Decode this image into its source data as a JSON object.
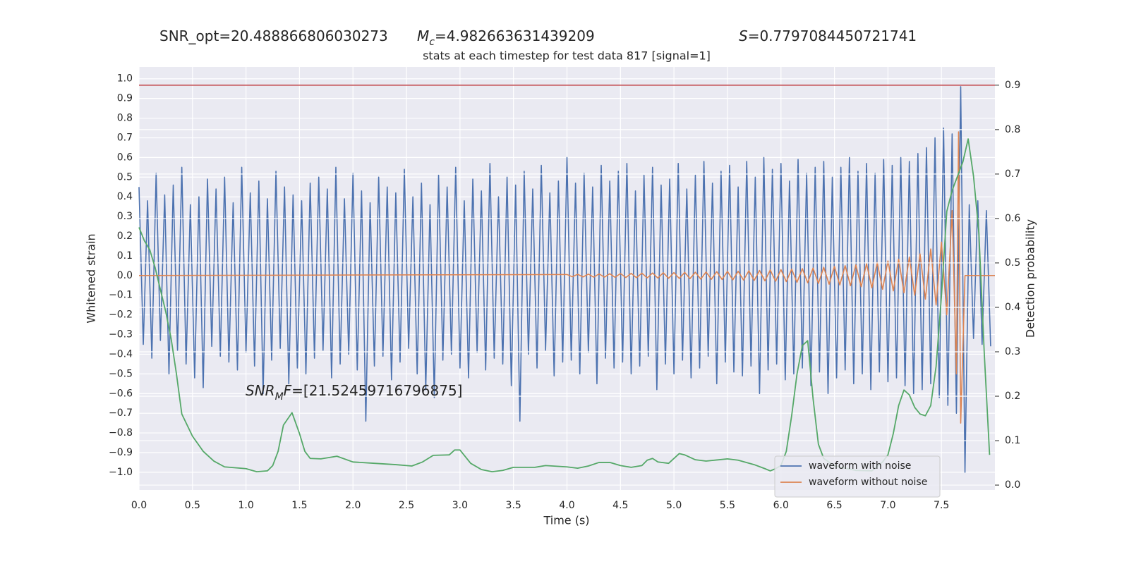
{
  "chart_data": {
    "type": "line",
    "header": [
      {
        "parts": [
          {
            "text": "SNR_opt=20.488866806030273"
          }
        ]
      },
      {
        "parts": [
          {
            "text": "M",
            "italic": true
          },
          {
            "text": "c",
            "italic": true,
            "sub": true
          },
          {
            "text": "=4.982663631439209"
          }
        ]
      },
      {
        "parts": [
          {
            "text": "S",
            "italic": true
          },
          {
            "text": "=0.7797084450721741"
          }
        ]
      }
    ],
    "title": "stats at each timestep for test data 817 [signal=1]",
    "annotations": [
      {
        "parts": [
          {
            "text": "SNR",
            "italic": true
          },
          {
            "text": "M",
            "italic": true,
            "sub": true
          },
          {
            "text": "F",
            "italic": true
          },
          {
            "text": "=[21.52459716796875]"
          }
        ]
      }
    ],
    "xlabel": "Time (s)",
    "ylabel": "Whitened strain",
    "y2label": "Detection probability",
    "xlim": [
      0,
      8
    ],
    "ylim": [
      -1.09,
      1.06
    ],
    "y2lim": [
      -0.011,
      0.941
    ],
    "xticks": [
      {
        "value": 0,
        "label": "0.0"
      },
      0.5,
      {
        "value": 1,
        "label": "1.0"
      },
      1.5,
      {
        "value": 2,
        "label": "2.0"
      },
      2.5,
      {
        "value": 3,
        "label": "3.0"
      },
      3.5,
      {
        "value": 4,
        "label": "4.0"
      },
      4.5,
      {
        "value": 5,
        "label": "5.0"
      },
      5.5,
      {
        "value": 6,
        "label": "6.0"
      },
      6.5,
      {
        "value": 7,
        "label": "7.0"
      },
      7.5
    ],
    "yticks": [
      {
        "value": 1,
        "label": "1.0"
      },
      0.9,
      0.8,
      0.7,
      0.6,
      0.5,
      0.4,
      0.3,
      0.2,
      0.1,
      {
        "value": 0,
        "label": "0.0"
      },
      {
        "value": -0.1,
        "label": "−0.1"
      },
      {
        "value": -0.2,
        "label": "−0.2"
      },
      {
        "value": -0.3,
        "label": "−0.3"
      },
      {
        "value": -0.4,
        "label": "−0.4"
      },
      {
        "value": -0.5,
        "label": "−0.5"
      },
      {
        "value": -0.6,
        "label": "−0.6"
      },
      {
        "value": -0.7,
        "label": "−0.7"
      },
      {
        "value": -0.8,
        "label": "−0.8"
      },
      {
        "value": -0.9,
        "label": "−0.9"
      },
      {
        "value": -1,
        "label": "−1.0"
      }
    ],
    "y2ticks": [
      {
        "value": 0,
        "label": "0.0"
      },
      0.1,
      0.2,
      0.3,
      0.4,
      0.5,
      0.6,
      0.7,
      0.8,
      0.9
    ],
    "grid": true,
    "legend": "lower right",
    "hlines": [
      {
        "axis": "y2",
        "value": 0.9,
        "color": "#c44e52"
      }
    ],
    "series": [
      {
        "name": "waveform with noise",
        "color": "#4c72b0",
        "x": [
          0,
          0.04,
          0.08,
          0.12,
          0.16,
          0.2,
          0.24,
          0.28,
          0.32,
          0.36,
          0.4,
          0.44,
          0.48,
          0.52,
          0.56,
          0.6,
          0.64,
          0.68,
          0.72,
          0.76,
          0.8,
          0.84,
          0.88,
          0.92,
          0.96,
          1,
          1.04,
          1.08,
          1.12,
          1.16,
          1.2,
          1.24,
          1.28,
          1.32,
          1.36,
          1.4,
          1.44,
          1.48,
          1.52,
          1.56,
          1.6,
          1.64,
          1.68,
          1.72,
          1.76,
          1.8,
          1.84,
          1.88,
          1.92,
          1.96,
          2,
          2.04,
          2.08,
          2.12,
          2.16,
          2.2,
          2.24,
          2.28,
          2.32,
          2.36,
          2.4,
          2.44,
          2.48,
          2.52,
          2.56,
          2.6,
          2.64,
          2.68,
          2.72,
          2.76,
          2.8,
          2.84,
          2.88,
          2.92,
          2.96,
          3,
          3.04,
          3.08,
          3.12,
          3.16,
          3.2,
          3.24,
          3.28,
          3.32,
          3.36,
          3.4,
          3.44,
          3.48,
          3.52,
          3.56,
          3.6,
          3.64,
          3.68,
          3.72,
          3.76,
          3.8,
          3.84,
          3.88,
          3.92,
          3.96,
          4,
          4.04,
          4.08,
          4.12,
          4.16,
          4.2,
          4.24,
          4.28,
          4.32,
          4.36,
          4.4,
          4.44,
          4.48,
          4.52,
          4.56,
          4.6,
          4.64,
          4.68,
          4.72,
          4.76,
          4.8,
          4.84,
          4.88,
          4.92,
          4.96,
          5,
          5.04,
          5.08,
          5.12,
          5.16,
          5.2,
          5.24,
          5.28,
          5.32,
          5.36,
          5.4,
          5.44,
          5.48,
          5.52,
          5.56,
          5.6,
          5.64,
          5.68,
          5.72,
          5.76,
          5.8,
          5.84,
          5.88,
          5.92,
          5.96,
          6,
          6.04,
          6.08,
          6.12,
          6.16,
          6.2,
          6.24,
          6.28,
          6.32,
          6.36,
          6.4,
          6.44,
          6.48,
          6.52,
          6.56,
          6.6,
          6.64,
          6.68,
          6.72,
          6.76,
          6.8,
          6.84,
          6.88,
          6.92,
          6.96,
          7,
          7.04,
          7.08,
          7.12,
          7.16,
          7.2,
          7.24,
          7.28,
          7.32,
          7.36,
          7.4,
          7.44,
          7.48,
          7.52,
          7.56,
          7.6,
          7.64,
          7.68,
          7.72,
          7.76,
          7.8,
          7.84,
          7.88,
          7.92,
          7.96
        ],
        "values": [
          0.45,
          -0.35,
          0.38,
          -0.42,
          0.52,
          -0.33,
          0.41,
          -0.5,
          0.46,
          -0.38,
          0.55,
          -0.45,
          0.36,
          -0.52,
          0.4,
          -0.57,
          0.49,
          -0.36,
          0.44,
          -0.41,
          0.5,
          -0.44,
          0.37,
          -0.48,
          0.55,
          -0.39,
          0.42,
          -0.46,
          0.48,
          -0.6,
          0.39,
          -0.43,
          0.53,
          -0.37,
          0.45,
          -0.55,
          0.41,
          -0.47,
          0.38,
          -0.5,
          0.47,
          -0.42,
          0.5,
          -0.38,
          0.44,
          -0.52,
          0.55,
          -0.45,
          0.39,
          -0.4,
          0.52,
          -0.48,
          0.43,
          -0.74,
          0.37,
          -0.46,
          0.5,
          -0.41,
          0.45,
          -0.53,
          0.42,
          -0.44,
          0.54,
          -0.37,
          0.4,
          -0.5,
          0.47,
          -0.58,
          0.36,
          -0.62,
          0.51,
          -0.43,
          0.45,
          -0.4,
          0.55,
          -0.47,
          0.38,
          -0.52,
          0.49,
          -0.39,
          0.43,
          -0.48,
          0.57,
          -0.42,
          0.4,
          -0.45,
          0.5,
          -0.56,
          0.46,
          -0.74,
          0.53,
          -0.4,
          0.44,
          -0.47,
          0.56,
          -0.38,
          0.42,
          -0.51,
          0.48,
          -0.44,
          0.6,
          -0.43,
          0.47,
          -0.5,
          0.52,
          -0.39,
          0.45,
          -0.55,
          0.56,
          -0.42,
          0.48,
          -0.47,
          0.53,
          -0.44,
          0.57,
          -0.5,
          0.43,
          -0.46,
          0.51,
          -0.41,
          0.55,
          -0.58,
          0.46,
          -0.45,
          0.49,
          -0.5,
          0.57,
          -0.43,
          0.44,
          -0.52,
          0.51,
          -0.47,
          0.58,
          -0.41,
          0.47,
          -0.55,
          0.53,
          -0.44,
          0.56,
          -0.49,
          0.45,
          -0.51,
          0.58,
          -0.46,
          0.5,
          -0.6,
          0.6,
          -0.48,
          0.54,
          -0.45,
          0.57,
          -0.53,
          0.48,
          -0.5,
          0.59,
          -0.47,
          0.52,
          -0.56,
          0.55,
          -0.49,
          0.58,
          -0.6,
          0.5,
          -0.52,
          0.55,
          -0.48,
          0.6,
          -0.55,
          0.53,
          -0.5,
          0.57,
          -0.58,
          0.52,
          -0.49,
          0.59,
          -0.54,
          0.56,
          -0.52,
          0.6,
          -0.56,
          0.58,
          -0.6,
          0.62,
          -0.58,
          0.65,
          -0.55,
          0.7,
          -0.62,
          0.75,
          -0.66,
          0.72,
          -0.7,
          0.96,
          -1.0,
          0.36,
          -0.32,
          0.38,
          -0.35,
          0.33,
          -0.36
        ]
      },
      {
        "name": "waveform without noise",
        "color": "#dd8452",
        "x": [
          0,
          4,
          4.05,
          4.1,
          4.15,
          4.2,
          4.25,
          4.3,
          4.35,
          4.4,
          4.45,
          4.5,
          4.55,
          4.6,
          4.65,
          4.7,
          4.75,
          4.8,
          4.85,
          4.9,
          4.95,
          5,
          5.05,
          5.1,
          5.15,
          5.2,
          5.25,
          5.3,
          5.35,
          5.4,
          5.45,
          5.5,
          5.55,
          5.6,
          5.65,
          5.7,
          5.75,
          5.8,
          5.85,
          5.9,
          5.95,
          6,
          6.05,
          6.1,
          6.15,
          6.2,
          6.25,
          6.3,
          6.35,
          6.4,
          6.45,
          6.5,
          6.55,
          6.6,
          6.65,
          6.7,
          6.75,
          6.8,
          6.85,
          6.9,
          6.95,
          7,
          7.05,
          7.1,
          7.15,
          7.2,
          7.25,
          7.3,
          7.35,
          7.4,
          7.45,
          7.5,
          7.55,
          7.6,
          7.64,
          7.66,
          7.68,
          7.72,
          8
        ],
        "values": [
          0,
          0.005,
          -0.006,
          0.006,
          -0.007,
          0.007,
          -0.008,
          0.008,
          -0.008,
          0.009,
          -0.009,
          0.01,
          -0.01,
          0.011,
          -0.011,
          0.012,
          -0.012,
          0.013,
          -0.013,
          0.014,
          -0.014,
          0.015,
          -0.015,
          0.016,
          -0.016,
          0.017,
          -0.018,
          0.018,
          -0.019,
          0.02,
          -0.02,
          0.021,
          -0.022,
          0.022,
          -0.023,
          0.024,
          -0.025,
          0.026,
          -0.027,
          0.028,
          -0.029,
          0.03,
          -0.031,
          0.032,
          -0.034,
          0.035,
          -0.037,
          0.038,
          -0.04,
          0.042,
          -0.044,
          0.046,
          -0.048,
          0.05,
          -0.052,
          0.054,
          -0.057,
          0.06,
          -0.063,
          0.066,
          -0.07,
          0.074,
          -0.078,
          0.083,
          -0.088,
          0.094,
          -0.1,
          0.11,
          -0.12,
          0.135,
          -0.15,
          0.17,
          -0.2,
          0.33,
          -0.5,
          0.73,
          -0.75,
          0,
          0
        ]
      },
      {
        "name": null,
        "color": "#55a868",
        "axis": "y2",
        "x": [
          0,
          0.05,
          0.1,
          0.15,
          0.2,
          0.25,
          0.3,
          0.35,
          0.4,
          0.5,
          0.6,
          0.7,
          0.8,
          1,
          1.1,
          1.2,
          1.25,
          1.3,
          1.35,
          1.43,
          1.5,
          1.55,
          1.6,
          1.7,
          1.85,
          2,
          2.2,
          2.4,
          2.55,
          2.65,
          2.75,
          2.9,
          2.95,
          3,
          3.1,
          3.2,
          3.3,
          3.4,
          3.5,
          3.7,
          3.8,
          4,
          4.1,
          4.2,
          4.3,
          4.4,
          4.5,
          4.6,
          4.7,
          4.75,
          4.8,
          4.85,
          4.95,
          5.05,
          5.1,
          5.2,
          5.3,
          5.5,
          5.6,
          5.75,
          5.85,
          5.9,
          5.95,
          6,
          6.05,
          6.1,
          6.15,
          6.2,
          6.25,
          6.3,
          6.35,
          6.4,
          6.5,
          6.7,
          6.85,
          6.95,
          7,
          7.05,
          7.1,
          7.15,
          7.2,
          7.25,
          7.3,
          7.35,
          7.4,
          7.45,
          7.5,
          7.55,
          7.6,
          7.7,
          7.75,
          7.8,
          7.85,
          7.9,
          7.95
        ],
        "values": [
          0.58,
          0.55,
          0.53,
          0.49,
          0.44,
          0.39,
          0.33,
          0.25,
          0.16,
          0.11,
          0.076,
          0.054,
          0.041,
          0.037,
          0.03,
          0.032,
          0.044,
          0.076,
          0.135,
          0.163,
          0.116,
          0.076,
          0.06,
          0.059,
          0.065,
          0.052,
          0.049,
          0.046,
          0.043,
          0.052,
          0.067,
          0.068,
          0.079,
          0.079,
          0.049,
          0.035,
          0.03,
          0.033,
          0.04,
          0.04,
          0.044,
          0.041,
          0.038,
          0.043,
          0.051,
          0.051,
          0.044,
          0.04,
          0.044,
          0.056,
          0.06,
          0.052,
          0.049,
          0.071,
          0.068,
          0.057,
          0.054,
          0.059,
          0.056,
          0.046,
          0.037,
          0.032,
          0.037,
          0.044,
          0.076,
          0.156,
          0.25,
          0.314,
          0.325,
          0.195,
          0.092,
          0.06,
          0.043,
          0.033,
          0.032,
          0.052,
          0.068,
          0.116,
          0.179,
          0.214,
          0.203,
          0.175,
          0.16,
          0.156,
          0.179,
          0.267,
          0.425,
          0.616,
          0.663,
          0.727,
          0.779,
          0.695,
          0.568,
          0.298,
          0.068
        ]
      }
    ]
  }
}
